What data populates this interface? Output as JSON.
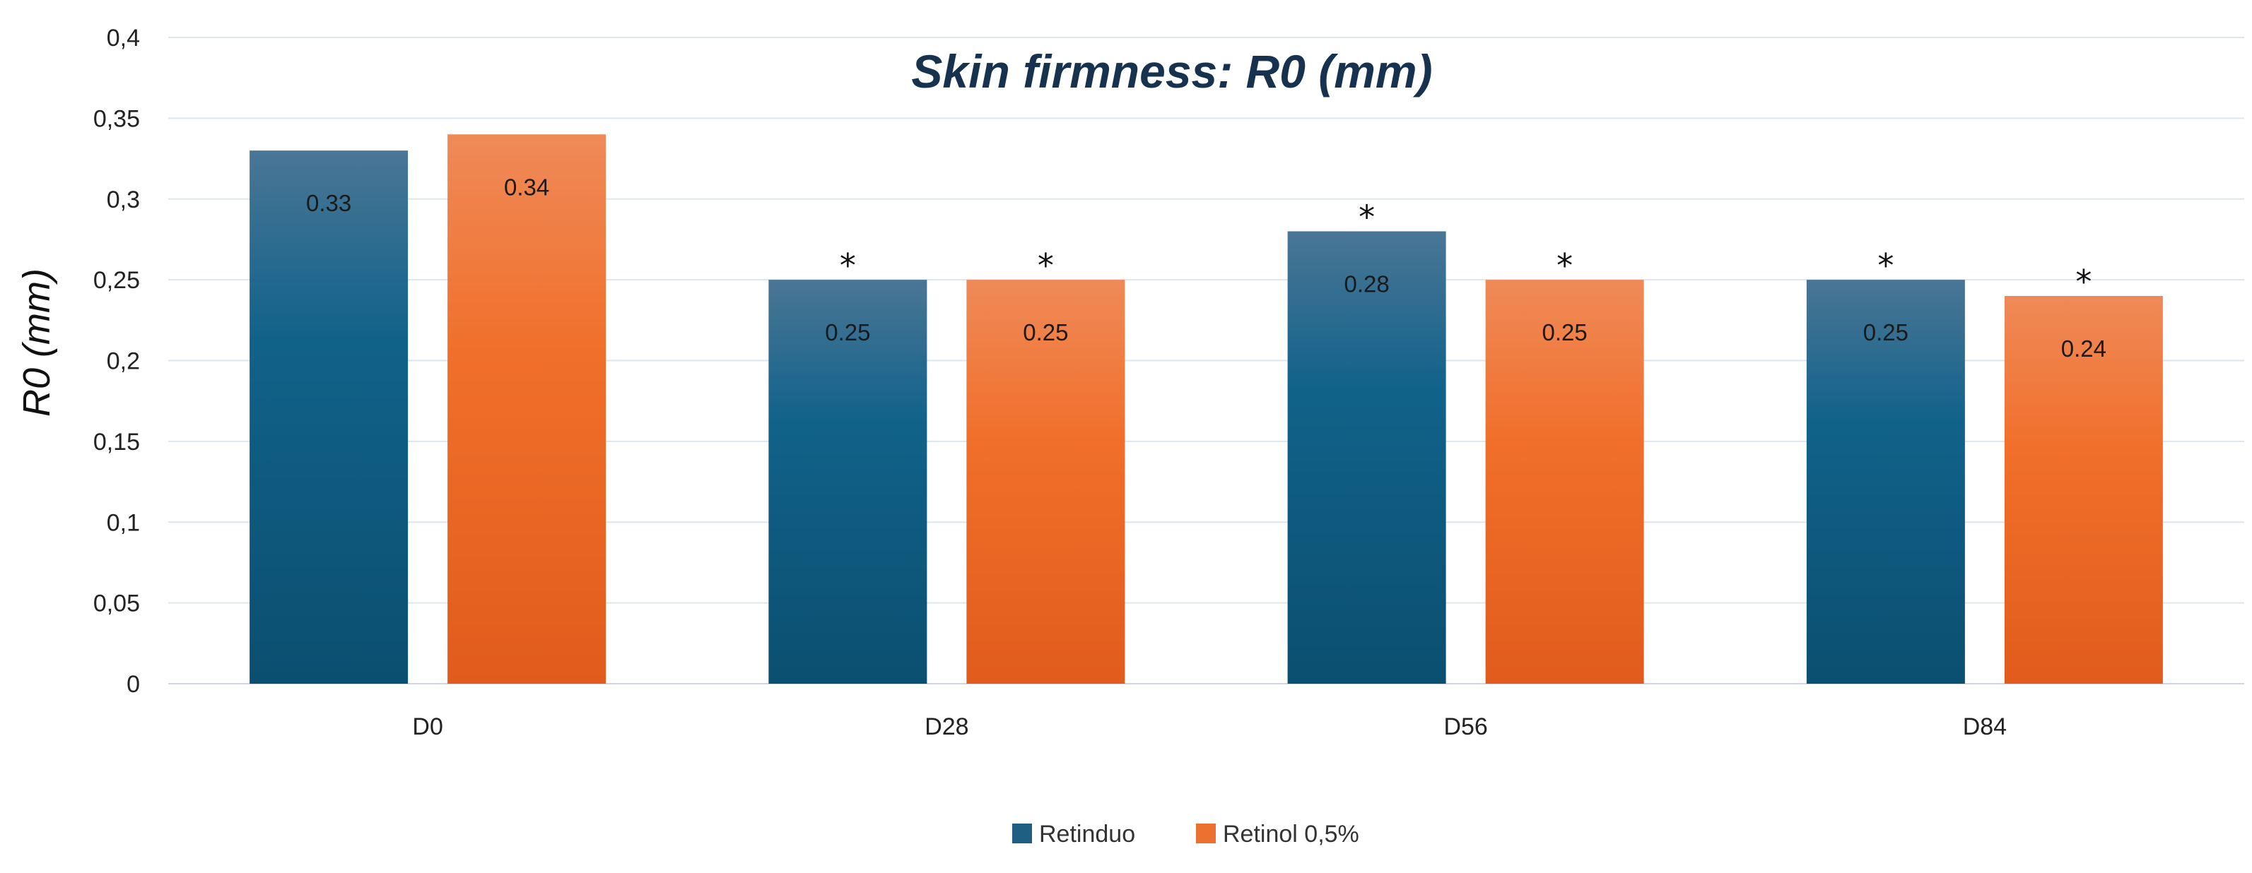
{
  "chart_data": {
    "type": "bar",
    "title": "Skin firmness: R0 (mm)",
    "ylabel": "R0 (mm)",
    "xlabel": "",
    "categories": [
      "D0",
      "D28",
      "D56",
      "D84"
    ],
    "ylim": [
      0,
      0.4
    ],
    "yticks": [
      0,
      0.05,
      0.1,
      0.15,
      0.2,
      0.25,
      0.3,
      0.35,
      0.4
    ],
    "ytick_labels": [
      "0",
      "0,05",
      "0,1",
      "0,15",
      "0,2",
      "0,25",
      "0,3",
      "0,35",
      "0,4"
    ],
    "grid": true,
    "legend_position": "bottom",
    "series": [
      {
        "name": "Retinduo",
        "color": "#1f5f82",
        "values": [
          0.33,
          0.25,
          0.28,
          0.25
        ],
        "data_labels": [
          "0.33",
          "0.25",
          "0.28",
          "0.25"
        ],
        "significance": [
          "",
          "*",
          "*",
          "*"
        ]
      },
      {
        "name": "Retinol 0,5%",
        "color": "#ec7030",
        "values": [
          0.34,
          0.25,
          0.25,
          0.24
        ],
        "data_labels": [
          "0.34",
          "0.25",
          "0.25",
          "0.24"
        ],
        "significance": [
          "",
          "*",
          "*",
          "*"
        ]
      }
    ]
  }
}
